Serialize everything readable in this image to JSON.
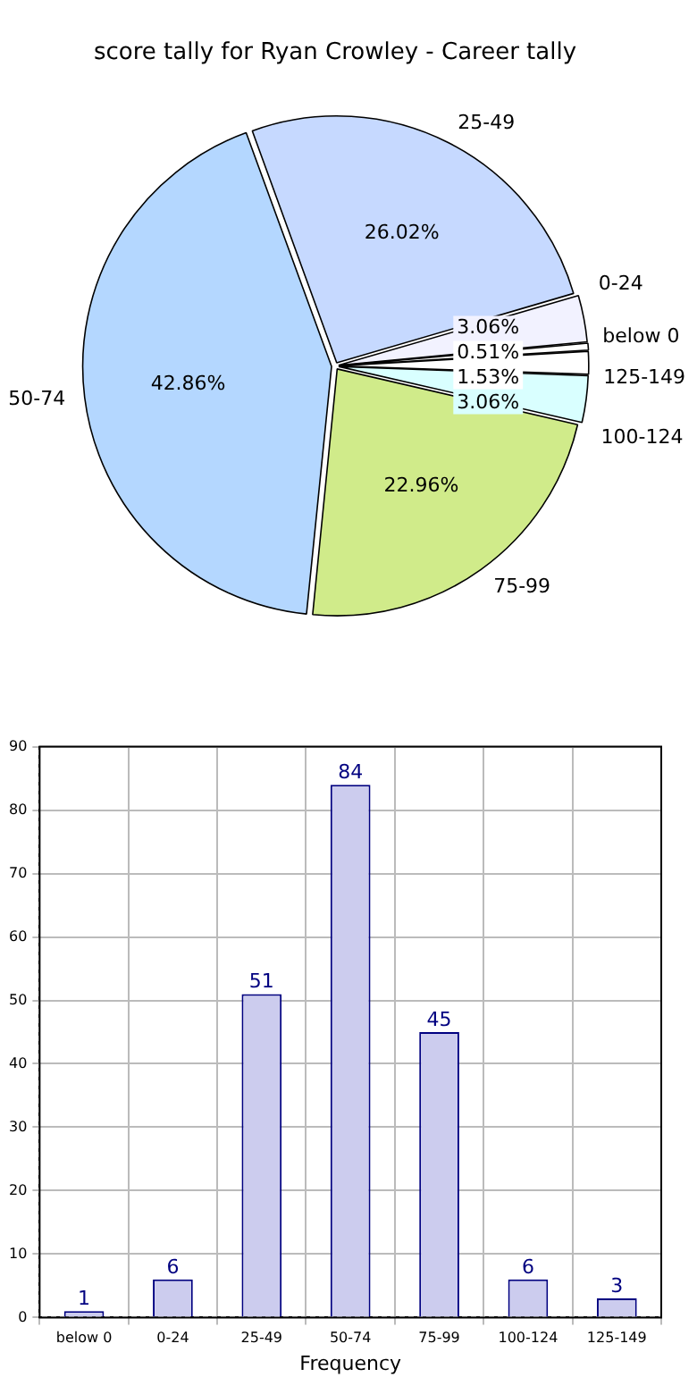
{
  "chart_data": [
    {
      "type": "pie",
      "title": "score tally for Ryan Crowley - Career tally",
      "categories": [
        "25-49",
        "0-24",
        "below 0",
        "125-149",
        "100-124",
        "75-99",
        "50-74"
      ],
      "values": [
        26.02,
        3.06,
        0.51,
        1.53,
        3.06,
        22.96,
        42.86
      ],
      "colors": [
        "#c6d9ff",
        "#f2f2ff",
        "#ffffff",
        "#ffffff",
        "#d9ffff",
        "#d0eb8a",
        "#b4d7ff"
      ],
      "value_labels": [
        "26.02%",
        "3.06%",
        "0.51%",
        "1.53%",
        "3.06%",
        "22.96%",
        "42.86%"
      ]
    },
    {
      "type": "bar",
      "xlabel": "Frequency",
      "categories": [
        "below 0",
        "0-24",
        "25-49",
        "50-74",
        "75-99",
        "100-124",
        "125-149"
      ],
      "values": [
        1,
        6,
        51,
        84,
        45,
        6,
        3
      ],
      "color": "#ccccee",
      "ylim": [
        0,
        90
      ],
      "yticks": [
        0,
        10,
        20,
        30,
        40,
        50,
        60,
        70,
        80,
        90
      ],
      "grid": true,
      "data_labels": true
    }
  ]
}
